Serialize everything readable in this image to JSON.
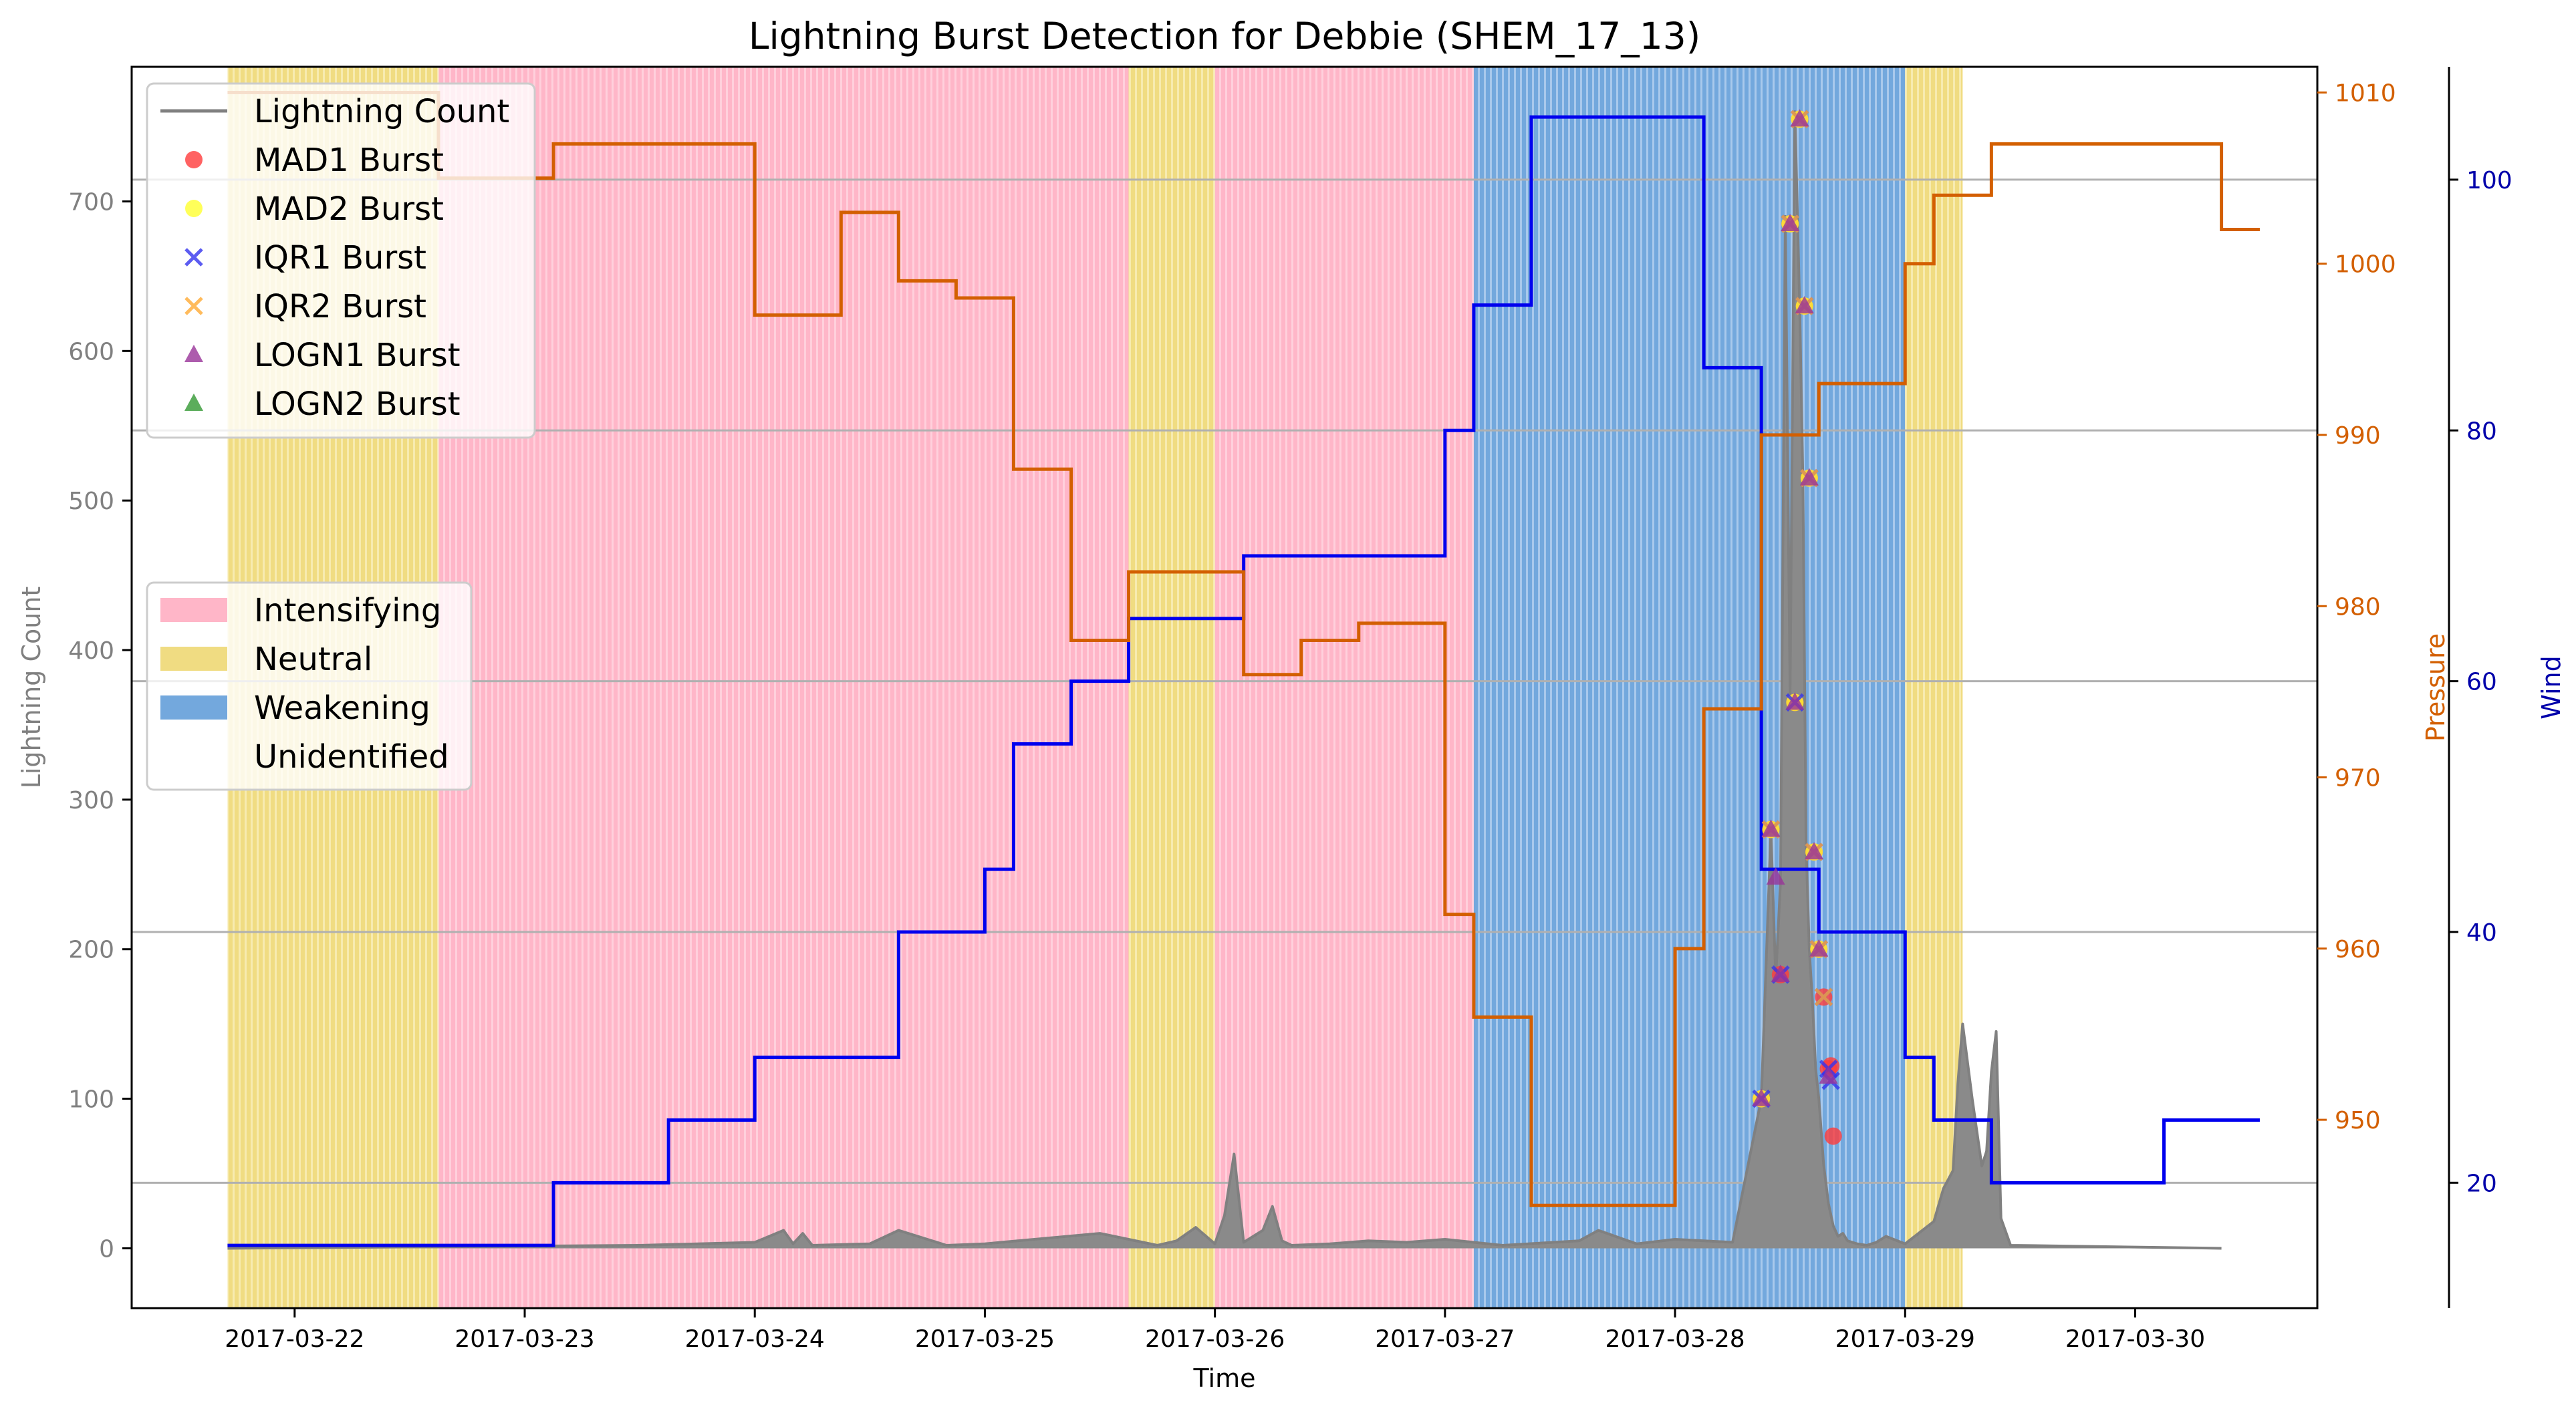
{
  "chart_data": {
    "type": "line",
    "title": "Lightning Burst Detection for Debbie (SHEM_17_13)",
    "xlabel": "Time",
    "ylabel_left": "Lightning Count",
    "ylabel_pressure": "Pressure",
    "ylabel_wind": "Wind",
    "x_range": [
      "2017-03-21T07:00",
      "2017-03-30T19:00"
    ],
    "y_left_range": [
      -40,
      790
    ],
    "y_pressure_range": [
      939,
      1011.5
    ],
    "y_wind_range": [
      10,
      109
    ],
    "x_ticks": [
      "2017-03-22",
      "2017-03-23",
      "2017-03-24",
      "2017-03-25",
      "2017-03-26",
      "2017-03-27",
      "2017-03-28",
      "2017-03-29",
      "2017-03-30"
    ],
    "y_left_ticks": [
      0,
      100,
      200,
      300,
      400,
      500,
      600,
      700
    ],
    "y_pressure_ticks": [
      950,
      960,
      970,
      980,
      990,
      1000,
      1010
    ],
    "y_wind_ticks": [
      20,
      40,
      60,
      80,
      100
    ],
    "grid": "horizontal lines at wind ticks",
    "legend_placement": "upper-left",
    "colors": {
      "lightning": "#808080",
      "pressure": "#d35f00",
      "wind": "#0000ee",
      "intensifying": "#ffb6c8",
      "neutral": "#f0dc82",
      "weakening": "#73a8dd",
      "mad1": "#ff3b3b",
      "mad2": "#ffff30",
      "iqr1": "#3333ee",
      "iqr2": "#ffaa33",
      "logn1": "#993399",
      "logn2": "#339933"
    },
    "phases": [
      {
        "label": "Neutral",
        "start": "2017-03-21T17:00",
        "end": "2017-03-22T15:00"
      },
      {
        "label": "Intensifying",
        "start": "2017-03-22T15:00",
        "end": "2017-03-25T15:00"
      },
      {
        "label": "Neutral",
        "start": "2017-03-25T15:00",
        "end": "2017-03-26T00:00"
      },
      {
        "label": "Intensifying",
        "start": "2017-03-26T00:00",
        "end": "2017-03-27T03:00"
      },
      {
        "label": "Weakening",
        "start": "2017-03-27T03:00",
        "end": "2017-03-29T00:00"
      },
      {
        "label": "Neutral",
        "start": "2017-03-29T00:00",
        "end": "2017-03-29T06:00"
      }
    ],
    "pressure": {
      "name": "Pressure",
      "times": [
        "2017-03-21T17:00",
        "2017-03-22T15:00",
        "2017-03-23T03:00",
        "2017-03-24T00:00",
        "2017-03-24T09:00",
        "2017-03-24T15:00",
        "2017-03-24T21:00",
        "2017-03-25T03:00",
        "2017-03-25T09:00",
        "2017-03-25T15:00",
        "2017-03-26T03:00",
        "2017-03-26T09:00",
        "2017-03-26T15:00",
        "2017-03-27T00:00",
        "2017-03-27T03:00",
        "2017-03-27T09:00",
        "2017-03-28T00:00",
        "2017-03-28T03:00",
        "2017-03-28T09:00",
        "2017-03-28T15:00",
        "2017-03-29T00:00",
        "2017-03-29T03:00",
        "2017-03-29T09:00",
        "2017-03-30T03:00",
        "2017-03-30T09:00"
      ],
      "values": [
        1010,
        1005,
        1007,
        997,
        1003,
        999,
        998,
        988,
        978,
        982,
        976,
        978,
        979,
        962,
        956,
        945,
        960,
        974,
        990,
        993,
        1000,
        1004,
        1007,
        1007,
        1002
      ]
    },
    "wind": {
      "name": "Wind",
      "times": [
        "2017-03-21T17:00",
        "2017-03-23T03:00",
        "2017-03-23T15:00",
        "2017-03-24T00:00",
        "2017-03-24T15:00",
        "2017-03-25T00:00",
        "2017-03-25T03:00",
        "2017-03-25T09:00",
        "2017-03-25T15:00",
        "2017-03-26T03:00",
        "2017-03-27T00:00",
        "2017-03-27T03:00",
        "2017-03-27T09:00",
        "2017-03-28T03:00",
        "2017-03-28T09:00",
        "2017-03-28T15:00",
        "2017-03-29T00:00",
        "2017-03-29T03:00",
        "2017-03-29T09:00",
        "2017-03-30T03:00",
        "2017-03-30T09:00"
      ],
      "values": [
        15,
        20,
        25,
        30,
        40,
        45,
        55,
        60,
        65,
        70,
        80,
        90,
        105,
        85,
        45,
        40,
        30,
        25,
        20,
        25,
        25
      ]
    },
    "lightning": {
      "name": "Lightning Count",
      "times": [
        "2017-03-21T17:00",
        "2017-03-23T12:00",
        "2017-03-24T00:00",
        "2017-03-24T03:00",
        "2017-03-24T04:00",
        "2017-03-24T05:00",
        "2017-03-24T06:00",
        "2017-03-24T12:00",
        "2017-03-24T15:00",
        "2017-03-24T20:00",
        "2017-03-25T00:00",
        "2017-03-25T12:00",
        "2017-03-25T18:00",
        "2017-03-25T20:00",
        "2017-03-25T22:00",
        "2017-03-26T00:00",
        "2017-03-26T01:00",
        "2017-03-26T02:00",
        "2017-03-26T03:00",
        "2017-03-26T05:00",
        "2017-03-26T06:00",
        "2017-03-26T07:00",
        "2017-03-26T08:00",
        "2017-03-26T12:00",
        "2017-03-26T16:00",
        "2017-03-26T20:00",
        "2017-03-27T00:00",
        "2017-03-27T06:00",
        "2017-03-27T14:00",
        "2017-03-27T16:00",
        "2017-03-27T20:00",
        "2017-03-28T00:00",
        "2017-03-28T06:00",
        "2017-03-28T09:00",
        "2017-03-28T10:00",
        "2017-03-28T10:30",
        "2017-03-28T11:00",
        "2017-03-28T11:30",
        "2017-03-28T12:00",
        "2017-03-28T12:30",
        "2017-03-28T13:00",
        "2017-03-28T13:20",
        "2017-03-28T13:40",
        "2017-03-28T14:00",
        "2017-03-28T14:20",
        "2017-03-28T14:40",
        "2017-03-28T15:00",
        "2017-03-28T15:30",
        "2017-03-28T16:00",
        "2017-03-28T16:30",
        "2017-03-28T17:00",
        "2017-03-28T17:30",
        "2017-03-28T18:00",
        "2017-03-28T19:00",
        "2017-03-28T20:00",
        "2017-03-28T21:00",
        "2017-03-28T22:00",
        "2017-03-29T00:00",
        "2017-03-29T03:00",
        "2017-03-29T04:00",
        "2017-03-29T05:00",
        "2017-03-29T05:30",
        "2017-03-29T06:00",
        "2017-03-29T07:00",
        "2017-03-29T08:00",
        "2017-03-29T08:30",
        "2017-03-29T09:00",
        "2017-03-29T09:30",
        "2017-03-29T10:00",
        "2017-03-29T11:00",
        "2017-03-30T09:00"
      ],
      "values": [
        0,
        2,
        4,
        12,
        3,
        10,
        2,
        3,
        12,
        2,
        3,
        10,
        2,
        5,
        14,
        3,
        22,
        63,
        4,
        12,
        28,
        5,
        2,
        3,
        5,
        4,
        6,
        2,
        5,
        12,
        3,
        6,
        4,
        100,
        280,
        180,
        245,
        690,
        370,
        760,
        630,
        515,
        270,
        200,
        165,
        120,
        100,
        56,
        30,
        15,
        8,
        10,
        5,
        3,
        2,
        4,
        8,
        3,
        18,
        40,
        52,
        110,
        150,
        100,
        55,
        65,
        118,
        145,
        20,
        2,
        0
      ]
    },
    "bursts": {
      "MAD1 Burst": {
        "times": [
          "2017-03-28T09:00",
          "2017-03-28T10:00",
          "2017-03-28T11:00",
          "2017-03-28T12:00",
          "2017-03-28T12:30",
          "2017-03-28T13:00",
          "2017-03-28T13:30",
          "2017-03-28T14:00",
          "2017-03-28T14:30",
          "2017-03-28T15:00",
          "2017-03-28T15:30",
          "2017-03-28T16:00",
          "2017-03-28T16:15",
          "2017-03-28T16:30"
        ],
        "values": [
          100,
          280,
          183,
          685,
          365,
          755,
          630,
          515,
          265,
          200,
          168,
          120,
          122,
          75
        ]
      },
      "MAD2 Burst": {
        "times": [
          "2017-03-28T09:00",
          "2017-03-28T10:00",
          "2017-03-28T12:00",
          "2017-03-28T12:30",
          "2017-03-28T13:00",
          "2017-03-28T13:30",
          "2017-03-28T14:00",
          "2017-03-28T14:30",
          "2017-03-28T15:00"
        ],
        "values": [
          100,
          280,
          685,
          365,
          755,
          630,
          515,
          265,
          200
        ]
      },
      "IQR1 Burst": {
        "times": [
          "2017-03-28T09:00",
          "2017-03-28T10:00",
          "2017-03-28T11:00",
          "2017-03-28T12:00",
          "2017-03-28T12:30",
          "2017-03-28T13:00",
          "2017-03-28T13:30",
          "2017-03-28T14:00",
          "2017-03-28T14:30",
          "2017-03-28T15:00",
          "2017-03-28T15:30",
          "2017-03-28T16:00",
          "2017-03-28T16:15"
        ],
        "values": [
          100,
          280,
          183,
          685,
          365,
          755,
          630,
          515,
          265,
          200,
          168,
          120,
          112
        ]
      },
      "IQR2 Burst": {
        "times": [
          "2017-03-28T10:00",
          "2017-03-28T12:00",
          "2017-03-28T13:00",
          "2017-03-28T13:30",
          "2017-03-28T14:00",
          "2017-03-28T14:30",
          "2017-03-28T15:00",
          "2017-03-28T15:30"
        ],
        "values": [
          280,
          685,
          755,
          630,
          515,
          265,
          200,
          168
        ]
      },
      "LOGN1 Burst": {
        "times": [
          "2017-03-28T09:00",
          "2017-03-28T10:00",
          "2017-03-28T10:30",
          "2017-03-28T11:00",
          "2017-03-28T12:00",
          "2017-03-28T12:30",
          "2017-03-28T13:00",
          "2017-03-28T13:30",
          "2017-03-28T14:00",
          "2017-03-28T14:30",
          "2017-03-28T15:00",
          "2017-03-28T16:00"
        ],
        "values": [
          100,
          280,
          248,
          183,
          685,
          365,
          755,
          630,
          515,
          265,
          200,
          115
        ]
      },
      "LOGN2 Burst": {
        "times": [],
        "values": []
      }
    }
  },
  "legend1": [
    {
      "key": "lightning",
      "label": "Lightning Count",
      "kind": "line"
    },
    {
      "key": "mad1",
      "label": "MAD1 Burst",
      "kind": "circle"
    },
    {
      "key": "mad2",
      "label": "MAD2 Burst",
      "kind": "circle"
    },
    {
      "key": "iqr1",
      "label": "IQR1 Burst",
      "kind": "x"
    },
    {
      "key": "iqr2",
      "label": "IQR2 Burst",
      "kind": "x"
    },
    {
      "key": "logn1",
      "label": "LOGN1 Burst",
      "kind": "triangle"
    },
    {
      "key": "logn2",
      "label": "LOGN2 Burst",
      "kind": "triangle"
    }
  ],
  "legend2": [
    {
      "key": "intensifying",
      "label": "Intensifying"
    },
    {
      "key": "neutral",
      "label": "Neutral"
    },
    {
      "key": "weakening",
      "label": "Weakening"
    },
    {
      "key": "unidentified",
      "label": "Unidentified"
    }
  ]
}
